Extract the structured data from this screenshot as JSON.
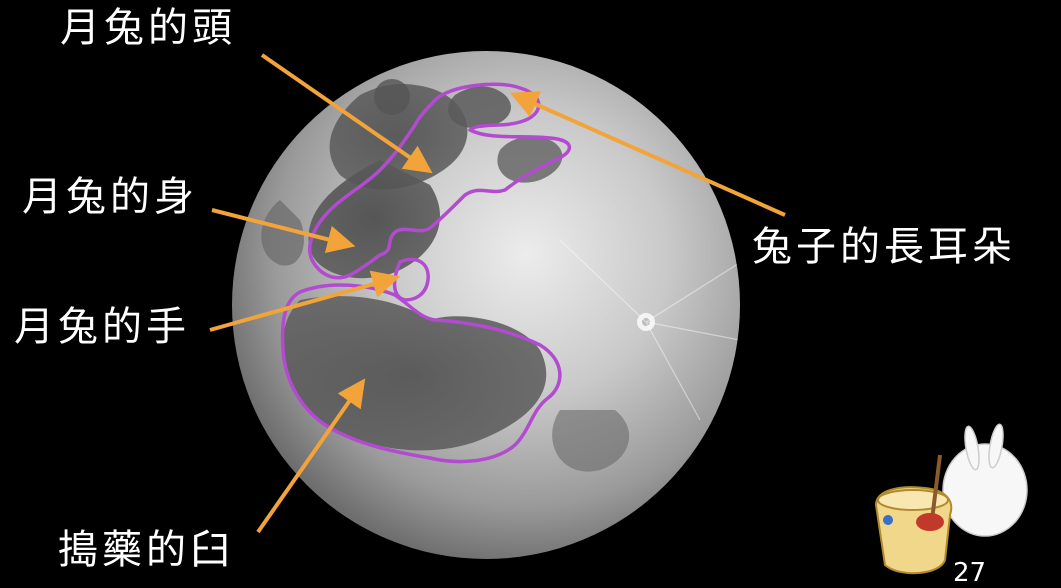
{
  "labels": {
    "rabbit_head": "月兔的頭",
    "rabbit_body": "月兔的身",
    "rabbit_hand": "月兔的手",
    "mortar": "搗藥的臼",
    "rabbit_ears": "兔子的長耳朵"
  },
  "page_number": "27",
  "colors": {
    "background": "#000000",
    "outline": "#b34bd1",
    "arrow": "#f2a33a",
    "label_text": "#ffffff"
  }
}
